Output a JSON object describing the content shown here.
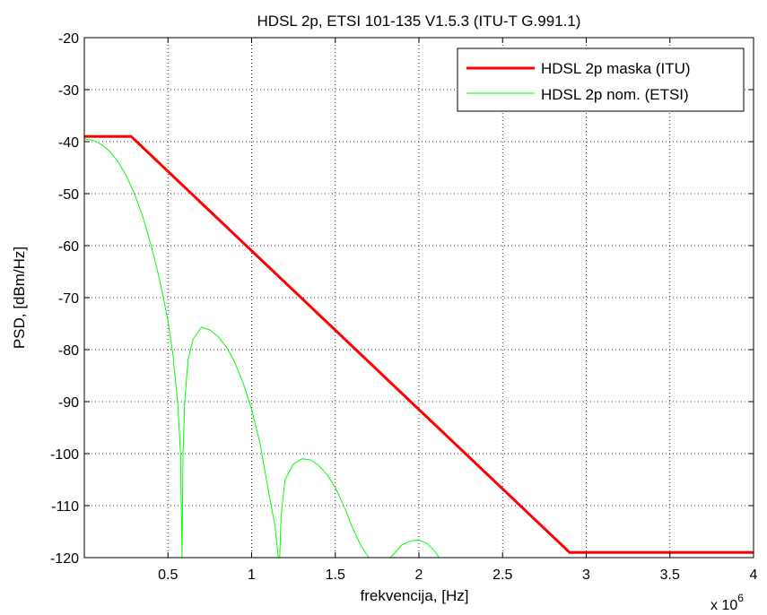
{
  "chart_data": {
    "type": "line",
    "title": "HDSL 2p, ETSI 101-135 V1.5.3 (ITU-T G.991.1)",
    "xlabel": "frekvencija, [Hz]",
    "ylabel": "PSD, [dBm/Hz]",
    "x_exponent_prefix": "x 10",
    "x_exponent_power": "6",
    "xlim": [
      0,
      4000000
    ],
    "ylim": [
      -120,
      -20
    ],
    "x_ticks": [
      500000,
      1000000,
      1500000,
      2000000,
      2500000,
      3000000,
      3500000,
      4000000
    ],
    "x_tick_labels": [
      "0.5",
      "1",
      "1.5",
      "2",
      "2.5",
      "3",
      "3.5",
      "4"
    ],
    "y_ticks": [
      -120,
      -110,
      -100,
      -90,
      -80,
      -70,
      -60,
      -50,
      -40,
      -30,
      -20
    ],
    "y_tick_labels": [
      "-120",
      "-110",
      "-100",
      "-90",
      "-80",
      "-70",
      "-60",
      "-50",
      "-40",
      "-30",
      "-20"
    ],
    "grid": true,
    "legend_position": "top-right",
    "series": [
      {
        "name": "HDSL 2p maska (ITU)",
        "color": "#ff0000",
        "x": [
          0,
          280000,
          2900000,
          4000000
        ],
        "y": [
          -39,
          -39,
          -119,
          -119
        ]
      },
      {
        "name": "HDSL 2p nom. (ETSI)",
        "color": "#00ff00",
        "x": [
          0,
          50000,
          100000,
          150000,
          200000,
          250000,
          300000,
          350000,
          400000,
          450000,
          500000,
          530000,
          560000,
          575000,
          584000,
          590000,
          600000,
          620000,
          650000,
          700000,
          750000,
          800000,
          850000,
          900000,
          950000,
          1000000,
          1050000,
          1100000,
          1140000,
          1160000,
          1168000,
          1176000,
          1200000,
          1250000,
          1300000,
          1350000,
          1400000,
          1450000,
          1500000,
          1550000,
          1600000,
          1650000,
          1700000,
          1750000,
          1800000,
          1830000,
          1900000,
          1950000,
          2000000,
          2050000,
          2100000,
          2120000
        ],
        "y": [
          -39.5,
          -39.7,
          -40.5,
          -41.8,
          -43.8,
          -46.5,
          -50,
          -54.5,
          -60,
          -66.5,
          -74.5,
          -81,
          -91,
          -100,
          -120,
          -100,
          -90,
          -82,
          -78,
          -75.7,
          -76.2,
          -77.5,
          -79.5,
          -82.5,
          -86.5,
          -91.5,
          -98,
          -107,
          -114,
          -120,
          -120,
          -112,
          -105,
          -102,
          -101,
          -101.2,
          -102.2,
          -104,
          -106.5,
          -110,
          -114,
          -117.5,
          -120,
          -120,
          -120,
          -120,
          -117.5,
          -116.8,
          -116.6,
          -117.3,
          -119,
          -120
        ]
      }
    ]
  }
}
